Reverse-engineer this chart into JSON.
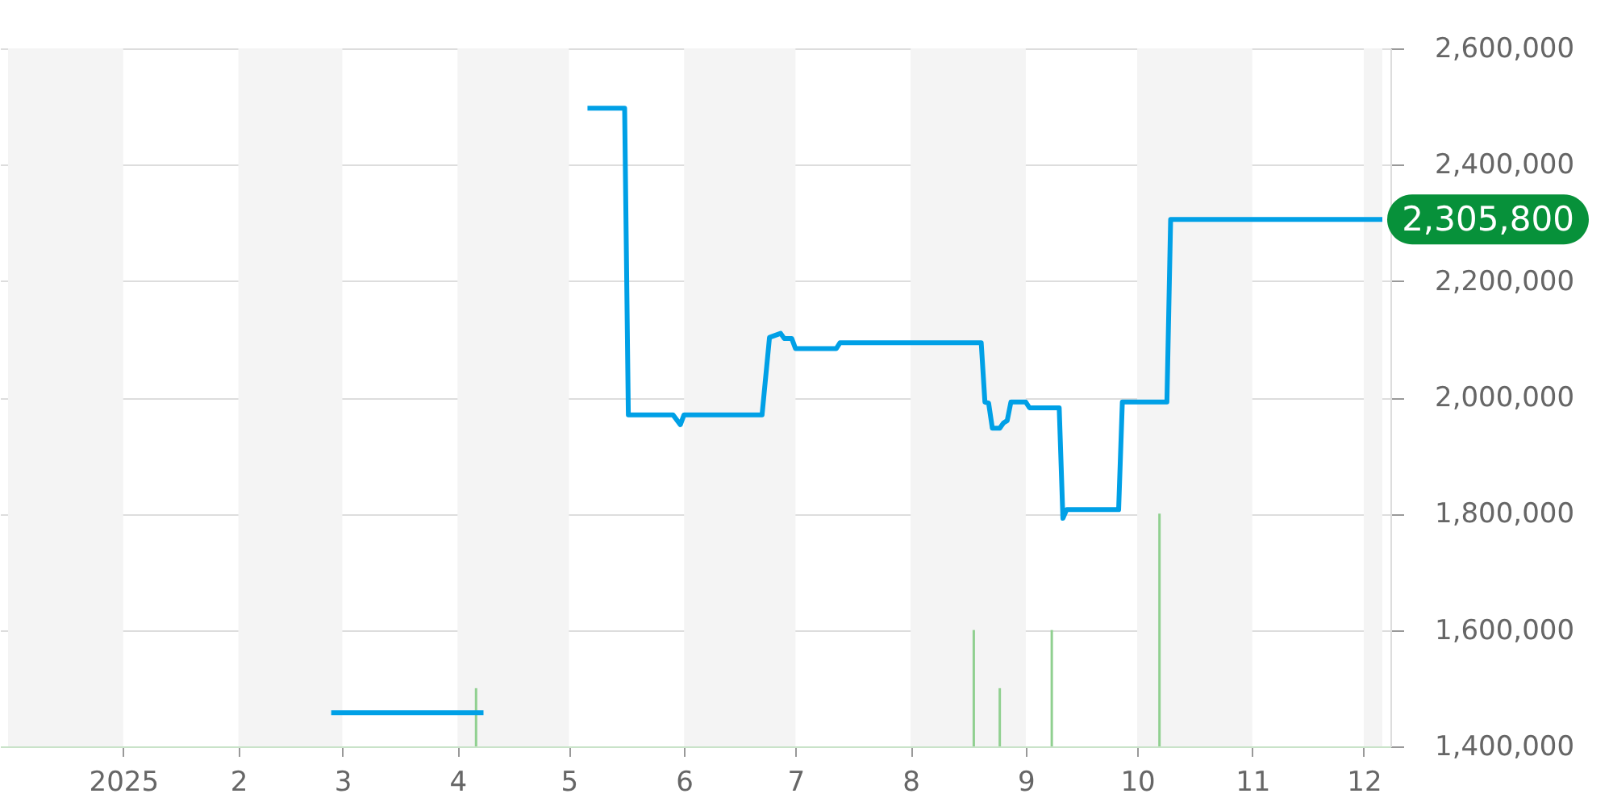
{
  "chart_data": {
    "type": "line",
    "xlim": [
      "2024-12-01",
      "2025-12-06"
    ],
    "xticks": [
      {
        "value": "2025-01-01",
        "label": "2025"
      },
      {
        "value": "2025-02-01",
        "label": "2"
      },
      {
        "value": "2025-03-01",
        "label": "3"
      },
      {
        "value": "2025-04-01",
        "label": "4"
      },
      {
        "value": "2025-05-01",
        "label": "5"
      },
      {
        "value": "2025-06-01",
        "label": "6"
      },
      {
        "value": "2025-07-01",
        "label": "7"
      },
      {
        "value": "2025-08-01",
        "label": "8"
      },
      {
        "value": "2025-09-01",
        "label": "9"
      },
      {
        "value": "2025-10-01",
        "label": "10"
      },
      {
        "value": "2025-11-01",
        "label": "11"
      },
      {
        "value": "2025-12-01",
        "label": "12"
      }
    ],
    "ylim": [
      1400000,
      2600000
    ],
    "yticks": [
      {
        "value": 1400000,
        "label": "1,400,000"
      },
      {
        "value": 1600000,
        "label": "1,600,000"
      },
      {
        "value": 1800000,
        "label": "1,800,000"
      },
      {
        "value": 2000000,
        "label": "2,000,000"
      },
      {
        "value": 2200000,
        "label": "2,200,000"
      },
      {
        "value": 2400000,
        "label": "2,400,000"
      },
      {
        "value": 2600000,
        "label": "2,600,000"
      }
    ],
    "grid": "y",
    "bands": [
      {
        "axis": "x",
        "from": "2024-12-01",
        "to": "2025-01-01",
        "color": "#f4f4f4"
      },
      {
        "axis": "x",
        "from": "2025-02-01",
        "to": "2025-03-01",
        "color": "#f4f4f4"
      },
      {
        "axis": "x",
        "from": "2025-04-01",
        "to": "2025-05-01",
        "color": "#f4f4f4"
      },
      {
        "axis": "x",
        "from": "2025-06-01",
        "to": "2025-07-01",
        "color": "#f4f4f4"
      },
      {
        "axis": "x",
        "from": "2025-08-01",
        "to": "2025-09-01",
        "color": "#f4f4f4"
      },
      {
        "axis": "x",
        "from": "2025-10-01",
        "to": "2025-11-01",
        "color": "#f4f4f4"
      },
      {
        "axis": "x",
        "from": "2025-12-01",
        "to": "2025-12-06",
        "color": "#f4f4f4"
      }
    ],
    "series": [
      {
        "type": "bar",
        "color": "#90d090",
        "x": [
          "2025-04-06",
          "2025-08-18",
          "2025-08-25",
          "2025-09-08",
          "2025-10-07"
        ],
        "values": [
          1500000,
          1600000,
          1500000,
          1600000,
          1800000
        ]
      },
      {
        "color": "#00a0e6",
        "x": [
          "2025-02-26",
          "2025-04-08",
          "2025-04-20",
          "2025-05-06",
          "2025-05-16",
          "2025-05-17",
          "2025-05-29",
          "2025-05-31",
          "2025-06-01",
          "2025-06-22",
          "2025-06-24",
          "2025-06-27",
          "2025-06-28",
          "2025-06-30",
          "2025-07-01",
          "2025-07-12",
          "2025-07-13",
          "2025-08-20",
          "2025-08-21",
          "2025-08-22",
          "2025-08-23",
          "2025-08-25",
          "2025-08-26",
          "2025-08-27",
          "2025-08-28",
          "2025-09-01",
          "2025-09-02",
          "2025-09-10",
          "2025-09-11",
          "2025-09-12",
          "2025-09-26",
          "2025-09-27",
          "2025-10-09",
          "2025-10-10",
          "2025-12-06"
        ],
        "values": [
          1458000,
          1458000,
          null,
          2497000,
          2497000,
          1970000,
          1970000,
          1953000,
          1970000,
          1970000,
          2103000,
          2110000,
          2101000,
          2101000,
          2084000,
          2084000,
          2094000,
          2094000,
          1992000,
          1990000,
          1947000,
          1947000,
          1956000,
          1960000,
          1992000,
          1992000,
          1982000,
          1982000,
          1792000,
          1807000,
          1807000,
          1992000,
          1992000,
          2305800,
          2305800
        ],
        "value_labels": [
          null,
          null,
          null,
          null,
          null,
          null,
          null,
          null,
          null,
          null,
          null,
          null,
          null,
          null,
          null,
          null,
          null,
          null,
          null,
          null,
          null,
          null,
          null,
          null,
          null,
          null,
          null,
          null,
          null,
          null,
          null,
          null,
          null,
          null,
          "2,305,800"
        ]
      }
    ]
  }
}
